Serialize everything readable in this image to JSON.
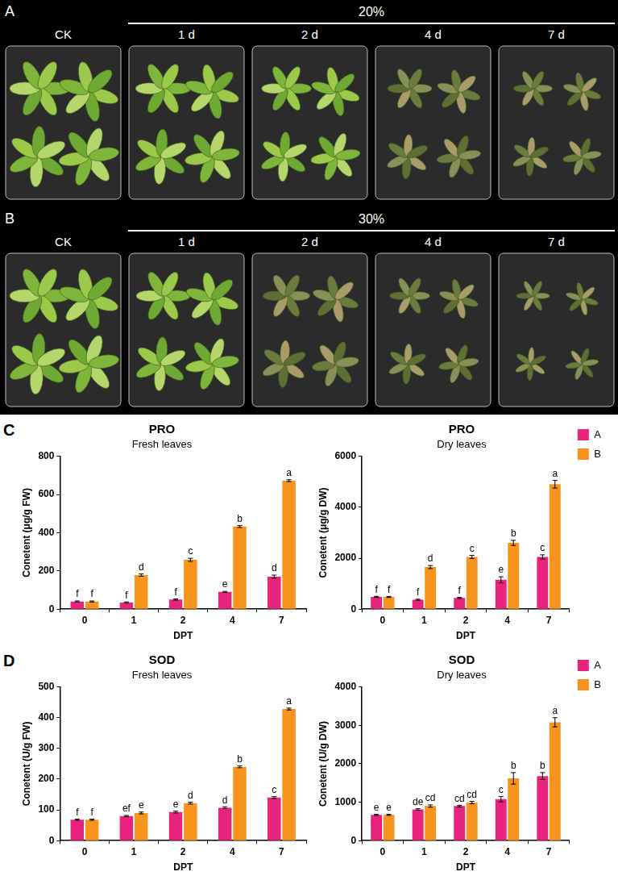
{
  "photo_panels": [
    {
      "letter": "A",
      "treatment": "20%",
      "labels": [
        "CK",
        "1 d",
        "2 d",
        "4 d",
        "7 d"
      ]
    },
    {
      "letter": "B",
      "treatment": "30%",
      "labels": [
        "CK",
        "1 d",
        "2 d",
        "4 d",
        "7 d"
      ]
    }
  ],
  "row_letters": [
    "C",
    "D"
  ],
  "chart_data": [
    {
      "type": "bar",
      "title": "PRO",
      "subtitle": "Fresh leaves",
      "x_label": "DPT",
      "y_label": "Conetent (μg/g FW)",
      "categories": [
        "0",
        "1",
        "2",
        "4",
        "7"
      ],
      "series": [
        {
          "name": "A",
          "color": "#e8237e",
          "values": [
            40,
            35,
            50,
            90,
            170
          ],
          "errors": [
            3,
            3,
            3,
            3,
            8
          ],
          "letters": [
            "f",
            "f",
            "f",
            "e",
            "d"
          ]
        },
        {
          "name": "B",
          "color": "#f7941d",
          "values": [
            40,
            178,
            258,
            432,
            672
          ],
          "errors": [
            3,
            6,
            8,
            5,
            5
          ],
          "letters": [
            "f",
            "d",
            "c",
            "b",
            "a"
          ]
        }
      ],
      "ylim": [
        0,
        800
      ],
      "yticks": [
        0,
        200,
        400,
        600,
        800
      ],
      "grid": false
    },
    {
      "type": "bar",
      "title": "PRO",
      "subtitle": "Dry leaves",
      "x_label": "DPT",
      "y_label": "Conetent (μg/g DW)",
      "categories": [
        "0",
        "1",
        "2",
        "4",
        "7"
      ],
      "series": [
        {
          "name": "A",
          "color": "#e8237e",
          "values": [
            480,
            370,
            440,
            1150,
            2050
          ],
          "errors": [
            20,
            20,
            20,
            120,
            80
          ],
          "letters": [
            "f",
            "f",
            "f",
            "e",
            "c"
          ]
        },
        {
          "name": "B",
          "color": "#f7941d",
          "values": [
            480,
            1650,
            2050,
            2600,
            4900
          ],
          "errors": [
            20,
            60,
            60,
            100,
            150
          ],
          "letters": [
            "f",
            "d",
            "c",
            "b",
            "a"
          ]
        }
      ],
      "ylim": [
        0,
        6000
      ],
      "yticks": [
        0,
        2000,
        4000,
        6000
      ],
      "grid": false,
      "legend": "right"
    },
    {
      "type": "bar",
      "title": "SOD",
      "subtitle": "Fresh leaves",
      "x_label": "DPT",
      "y_label": "Conetent (U/g FW)",
      "categories": [
        "0",
        "1",
        "2",
        "4",
        "7"
      ],
      "series": [
        {
          "name": "A",
          "color": "#e8237e",
          "values": [
            68,
            80,
            93,
            107,
            140
          ],
          "errors": [
            2,
            2,
            3,
            3,
            3
          ],
          "letters": [
            "f",
            "ef",
            "e",
            "d",
            "c"
          ]
        },
        {
          "name": "B",
          "color": "#f7941d",
          "values": [
            68,
            90,
            122,
            240,
            428
          ],
          "errors": [
            2,
            3,
            3,
            3,
            3
          ],
          "letters": [
            "f",
            "e",
            "d",
            "b",
            "a"
          ]
        }
      ],
      "ylim": [
        0,
        500
      ],
      "yticks": [
        0,
        100,
        200,
        300,
        400,
        500
      ],
      "grid": false
    },
    {
      "type": "bar",
      "title": "SOD",
      "subtitle": "Dry leaves",
      "x_label": "DPT",
      "y_label": "Conetent (U/g DW)",
      "categories": [
        "0",
        "1",
        "2",
        "4",
        "7"
      ],
      "series": [
        {
          "name": "A",
          "color": "#e8237e",
          "values": [
            670,
            810,
            900,
            1080,
            1680
          ],
          "errors": [
            15,
            20,
            20,
            70,
            90
          ],
          "letters": [
            "e",
            "de",
            "cd",
            "c",
            "b"
          ]
        },
        {
          "name": "B",
          "color": "#f7941d",
          "values": [
            670,
            900,
            990,
            1620,
            3080
          ],
          "errors": [
            15,
            30,
            30,
            150,
            120
          ],
          "letters": [
            "e",
            "cd",
            "cd",
            "b",
            "a"
          ]
        }
      ],
      "ylim": [
        0,
        4000
      ],
      "yticks": [
        0,
        1000,
        2000,
        3000,
        4000
      ],
      "grid": false,
      "legend": "right"
    }
  ]
}
